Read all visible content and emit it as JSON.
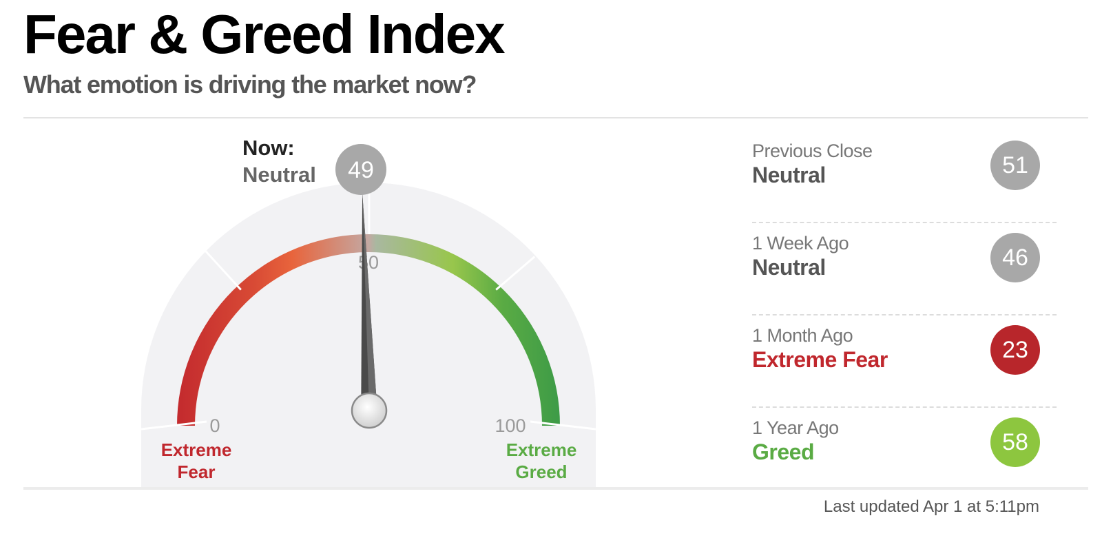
{
  "header": {
    "title": "Fear & Greed Index",
    "subtitle": "What emotion is driving the market now?"
  },
  "gauge": {
    "now_label": "Now:",
    "current_value": 49,
    "current_value_text": "49",
    "current_rating": "Neutral",
    "scale_min": 0,
    "scale_mid": 50,
    "scale_max": 100,
    "min_label": "0",
    "mid_label": "50",
    "max_label": "100",
    "left_label_line1": "Extreme",
    "left_label_line2": "Fear",
    "right_label_line1": "Extreme",
    "right_label_line2": "Greed"
  },
  "history": [
    {
      "label": "Previous Close",
      "rating": "Neutral",
      "value": "51",
      "rating_color": "#555555",
      "circle_color": "#a8a8a8"
    },
    {
      "label": "1 Week Ago",
      "rating": "Neutral",
      "value": "46",
      "rating_color": "#555555",
      "circle_color": "#a8a8a8"
    },
    {
      "label": "1 Month Ago",
      "rating": "Extreme Fear",
      "value": "23",
      "rating_color": "#c0272d",
      "circle_color": "#b8262b"
    },
    {
      "label": "1 Year Ago",
      "rating": "Greed",
      "value": "58",
      "rating_color": "#5aab44",
      "circle_color": "#8dc63f"
    }
  ],
  "footer": {
    "last_updated": "Last updated Apr 1 at 5:11pm"
  },
  "colors": {
    "extreme_fear": "#c0272d",
    "fear": "#e8603c",
    "neutral": "#a8a8a8",
    "greed": "#8dc63f",
    "extreme_greed": "#3d9b47",
    "needle": "#4a4a4a"
  }
}
